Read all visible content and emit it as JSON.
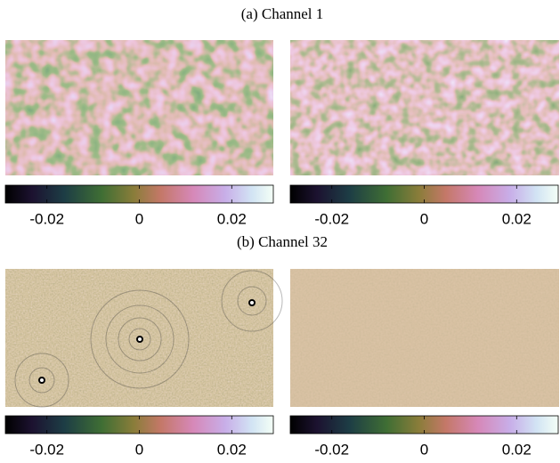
{
  "panels": [
    {
      "caption": "(a) Channel 1",
      "colorbars": [
        {
          "clim": [
            -0.029,
            0.029
          ],
          "ticks": [
            -0.02,
            0,
            0.02
          ]
        },
        {
          "clim": [
            -0.029,
            0.029
          ],
          "ticks": [
            -0.02,
            0,
            0.02
          ]
        }
      ]
    },
    {
      "caption": "(b) Channel 32",
      "colorbars": [
        {
          "clim": [
            -0.029,
            0.029
          ],
          "ticks": [
            -0.02,
            0,
            0.02
          ]
        },
        {
          "clim": [
            -0.029,
            0.029
          ],
          "ticks": [
            -0.02,
            0,
            0.02
          ]
        }
      ]
    }
  ]
}
